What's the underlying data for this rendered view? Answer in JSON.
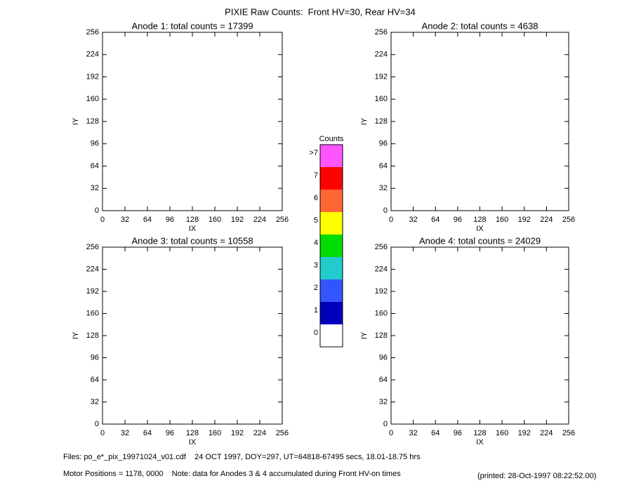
{
  "title": "PIXIE Raw Counts:  Front HV=30, Rear HV=34",
  "chart_data": [
    {
      "type": "heatmap",
      "title": "Anode 1: total counts = 17399",
      "x_label": "IX",
      "y_label": "IY",
      "xlim": [
        0,
        256
      ],
      "ylim": [
        0,
        256
      ],
      "xticks": [
        0,
        32,
        64,
        96,
        128,
        160,
        192,
        224,
        256
      ],
      "yticks": [
        0,
        32,
        64,
        96,
        128,
        160,
        192,
        224,
        256
      ]
    },
    {
      "type": "heatmap",
      "title": "Anode 2: total counts = 4638",
      "x_label": "IX",
      "y_label": "IY",
      "xlim": [
        0,
        256
      ],
      "ylim": [
        0,
        256
      ],
      "xticks": [
        0,
        32,
        64,
        96,
        128,
        160,
        192,
        224,
        256
      ],
      "yticks": [
        0,
        32,
        64,
        96,
        128,
        160,
        192,
        224,
        256
      ]
    },
    {
      "type": "heatmap",
      "title": "Anode 3: total counts = 10558",
      "x_label": "IX",
      "y_label": "IY",
      "xlim": [
        0,
        256
      ],
      "ylim": [
        0,
        256
      ],
      "xticks": [
        0,
        32,
        64,
        96,
        128,
        160,
        192,
        224,
        256
      ],
      "yticks": [
        0,
        32,
        64,
        96,
        128,
        160,
        192,
        224,
        256
      ]
    },
    {
      "type": "heatmap",
      "title": "Anode 4: total counts = 24029",
      "x_label": "IX",
      "y_label": "IY",
      "xlim": [
        0,
        256
      ],
      "ylim": [
        0,
        256
      ],
      "xticks": [
        0,
        32,
        64,
        96,
        128,
        160,
        192,
        224,
        256
      ],
      "yticks": [
        0,
        32,
        64,
        96,
        128,
        160,
        192,
        224,
        256
      ]
    }
  ],
  "colorbar": {
    "title": "Counts",
    "categories": [
      "0",
      "1",
      "2",
      "3",
      "4",
      "5",
      "6",
      "7",
      ">7"
    ],
    "colors": [
      "#ffffff",
      "#0000bb",
      "#3355ff",
      "#22cccc",
      "#00dd00",
      "#ffff00",
      "#ff6633",
      "#ff0000",
      "#ff55ff"
    ]
  },
  "footer": {
    "files": "Files: po_e*_pix_19971024_v01.cdf    24 OCT 1997, DOY=297, UT=64818-67495 secs, 18.01-18.75 hrs",
    "motor": "Motor Positions = 1178, 0000    Note: data for Anodes 3 & 4 accumulated during Front HV-on times",
    "printed": "(printed: 28-Oct-1997 08:22:52.00)"
  }
}
